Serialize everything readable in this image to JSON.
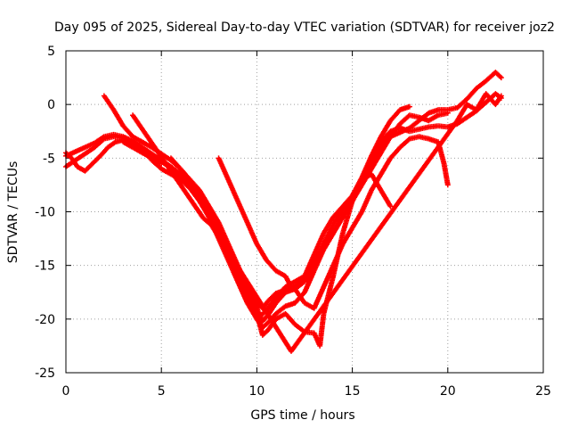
{
  "chart_data": {
    "type": "scatter",
    "title": "Day 095 of 2025, Sidereal Day-to-day VTEC variation (SDTVAR) for receiver joz2",
    "xlabel": "GPS time / hours",
    "ylabel": "SDTVAR / TECUs",
    "xlim": [
      0,
      25
    ],
    "ylim": [
      -25,
      5
    ],
    "xticks": [
      0,
      5,
      10,
      15,
      20,
      25
    ],
    "yticks": [
      -25,
      -20,
      -15,
      -10,
      -5,
      0,
      5
    ],
    "grid": true,
    "marker": "+",
    "color": "#ff0000",
    "series": [
      {
        "x": [
          0.0,
          0.5,
          1.0,
          1.5,
          2.0,
          2.5,
          3.0,
          3.5,
          4.0,
          4.5,
          5.0,
          5.5,
          6.0,
          6.5,
          7.0,
          7.5,
          8.0,
          8.5,
          9.0,
          9.5,
          10.0,
          10.3,
          10.6,
          11.0,
          11.5,
          12.0,
          12.5,
          13.0,
          13.5,
          14.0,
          14.5,
          15.0,
          15.5,
          16.0,
          16.5,
          17.0,
          17.5,
          18.0,
          18.5,
          19.0,
          19.5,
          20.0,
          20.5,
          21.0,
          21.5,
          22.0,
          22.5,
          22.8
        ],
        "y": [
          -5.8,
          -5.2,
          -4.6,
          -4.0,
          -3.2,
          -3.0,
          -3.1,
          -3.6,
          -4.2,
          -5.2,
          -6.0,
          -6.5,
          -7.0,
          -7.8,
          -9.0,
          -10.5,
          -12.0,
          -14.0,
          -16.0,
          -18.0,
          -20.0,
          -20.8,
          -20.3,
          -19.5,
          -18.8,
          -18.5,
          -17.5,
          -15.5,
          -13.5,
          -12.0,
          -10.5,
          -9.0,
          -7.0,
          -5.0,
          -3.5,
          -2.5,
          -2.2,
          -2.5,
          -2.3,
          -2.1,
          -2.0,
          -2.1,
          -1.8,
          -1.2,
          -0.6,
          0.2,
          1.0,
          0.6
        ]
      },
      {
        "x": [
          0.0,
          0.5,
          1.0,
          1.5,
          2.0,
          2.5,
          3.0,
          3.5,
          4.0,
          4.5,
          5.0,
          5.5,
          6.0,
          6.5,
          7.0,
          7.5,
          8.0,
          8.5,
          9.0,
          9.5,
          10.0,
          10.5,
          11.0,
          11.5,
          12.0,
          12.5,
          13.0,
          13.5,
          14.0,
          14.5,
          15.0,
          15.5,
          16.0,
          16.5,
          17.0,
          17.5,
          18.0,
          18.5,
          19.0,
          19.5,
          20.0
        ],
        "y": [
          -4.8,
          -4.4,
          -4.0,
          -3.6,
          -3.0,
          -2.8,
          -3.0,
          -3.4,
          -4.0,
          -4.6,
          -5.2,
          -5.8,
          -6.5,
          -7.5,
          -8.8,
          -10.5,
          -12.5,
          -14.5,
          -16.5,
          -18.5,
          -20.0,
          -19.2,
          -18.0,
          -17.0,
          -16.5,
          -16.0,
          -15.0,
          -13.5,
          -12.0,
          -10.5,
          -9.0,
          -7.5,
          -6.0,
          -4.5,
          -3.0,
          -1.8,
          -1.0,
          -1.2,
          -1.5,
          -1.0,
          -0.8
        ]
      },
      {
        "x": [
          2.0,
          2.5,
          3.0,
          3.5,
          4.0,
          4.5,
          5.0,
          5.5,
          6.0,
          6.5,
          7.0,
          7.5,
          8.0,
          8.5,
          9.0,
          9.5,
          10.0,
          10.3,
          10.6,
          11.0,
          11.5,
          12.0,
          12.5,
          13.0,
          13.5,
          14.0,
          14.5,
          15.0,
          15.5,
          16.0,
          16.5,
          17.0,
          17.5,
          18.0
        ],
        "y": [
          0.8,
          -0.5,
          -2.0,
          -3.0,
          -3.5,
          -4.0,
          -4.6,
          -5.2,
          -6.0,
          -7.0,
          -8.0,
          -9.5,
          -11.0,
          -13.0,
          -15.0,
          -17.0,
          -19.0,
          -20.2,
          -19.6,
          -18.5,
          -17.5,
          -17.2,
          -16.5,
          -14.8,
          -13.0,
          -11.2,
          -9.8,
          -8.5,
          -6.8,
          -4.8,
          -3.0,
          -1.5,
          -0.5,
          -0.2
        ]
      },
      {
        "x": [
          3.0,
          3.5,
          4.0,
          4.5,
          5.0,
          5.5,
          6.0,
          6.5,
          7.0,
          7.5,
          8.0,
          8.5,
          9.0,
          9.5,
          10.0,
          10.3,
          10.6,
          11.0,
          11.5,
          12.0,
          12.5,
          13.0,
          13.5,
          14.0,
          14.5,
          15.0,
          15.5,
          16.0,
          16.5,
          17.0,
          17.5,
          18.0,
          18.5,
          19.0,
          19.5,
          20.0,
          20.5,
          21.0,
          21.5,
          22.0,
          22.5,
          22.8
        ],
        "y": [
          -3.5,
          -4.0,
          -4.5,
          -5.0,
          -5.3,
          -6.0,
          -6.8,
          -7.8,
          -9.0,
          -10.5,
          -12.0,
          -13.8,
          -15.5,
          -17.2,
          -18.5,
          -19.0,
          -18.3,
          -17.6,
          -17.3,
          -17.0,
          -16.0,
          -14.0,
          -12.0,
          -10.5,
          -9.5,
          -8.5,
          -7.0,
          -5.5,
          -4.0,
          -3.0,
          -2.6,
          -2.2,
          -1.5,
          -0.8,
          -0.5,
          -0.5,
          -0.3,
          0.5,
          1.5,
          2.2,
          3.0,
          2.5
        ]
      },
      {
        "x": [
          5.5,
          6.0,
          6.5,
          7.0,
          7.5,
          7.8,
          8.0,
          8.5,
          9.0,
          9.5,
          10.0,
          10.3,
          10.6,
          11.0,
          11.5,
          12.0,
          12.5,
          13.0,
          13.3,
          13.5,
          14.0,
          14.5,
          15.0,
          15.5,
          16.0,
          16.5,
          17.0
        ],
        "y": [
          -5.0,
          -6.0,
          -7.2,
          -8.5,
          -10.0,
          -10.6,
          -11.5,
          -13.5,
          -15.5,
          -17.5,
          -19.5,
          -21.5,
          -21.0,
          -20.0,
          -19.5,
          -20.5,
          -21.2,
          -21.3,
          -22.5,
          -19.5,
          -16.0,
          -12.0,
          -9.0,
          -7.0,
          -6.5,
          -8.0,
          -9.5
        ]
      },
      {
        "x": [
          8.0,
          8.5,
          9.0,
          9.5,
          10.0,
          10.5,
          11.0,
          11.5,
          11.8,
          12.0,
          12.5,
          13.0,
          13.5,
          14.0,
          14.5,
          15.0,
          15.5,
          16.0,
          16.5,
          17.0,
          17.5,
          18.0,
          18.5,
          19.0,
          19.5,
          19.8,
          20.0
        ],
        "y": [
          -5.0,
          -7.0,
          -9.0,
          -11.0,
          -13.0,
          -14.5,
          -15.5,
          -16.0,
          -17.0,
          -17.2,
          -18.5,
          -19.0,
          -17.0,
          -15.0,
          -13.0,
          -11.5,
          -10.0,
          -8.0,
          -6.5,
          -5.0,
          -4.0,
          -3.2,
          -3.0,
          -3.2,
          -3.5,
          -5.5,
          -7.5
        ]
      },
      {
        "x": [
          0.0,
          0.3,
          0.6,
          1.0,
          1.4,
          1.8,
          2.2,
          2.6,
          3.0,
          3.4,
          3.8,
          4.2,
          4.6,
          5.0
        ],
        "y": [
          -4.5,
          -5.0,
          -5.8,
          -6.2,
          -5.5,
          -4.8,
          -4.0,
          -3.5,
          -3.3,
          -3.6,
          -4.0,
          -4.6,
          -5.2,
          -5.5
        ]
      },
      {
        "x": [
          3.5,
          7.2,
          7.6,
          11.8,
          20.5,
          21.0,
          21.5,
          22.0,
          22.5,
          22.8
        ],
        "y": [
          -1.0,
          -10.6,
          -11.2,
          -23.0,
          -1.5,
          0.0,
          -0.5,
          1.0,
          0.0,
          0.8
        ]
      }
    ]
  }
}
